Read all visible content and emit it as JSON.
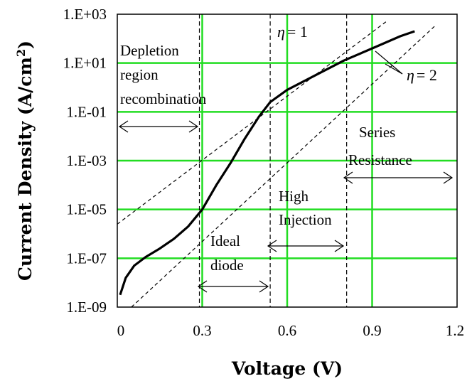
{
  "chart_data": {
    "type": "line",
    "xlabel": "Voltage (V)",
    "ylabel": "Current Density (A/cm",
    "ylabel_sup": "2",
    "ylabel_tail": ")",
    "xlim": [
      0,
      1.2
    ],
    "ylim_log10": [
      -9,
      3
    ],
    "y_scale": "log",
    "grid": true,
    "x_ticks": [
      0,
      0.3,
      0.6,
      0.9,
      1.2
    ],
    "x_tick_labels": [
      "0",
      "0.3",
      "0.6",
      "0.9",
      "1.2"
    ],
    "y_ticks": [
      -9,
      -7,
      -5,
      -3,
      -1,
      1,
      3
    ],
    "y_tick_labels": [
      "1.E-09",
      "1.E-07",
      "1.E-05",
      "1.E-03",
      "1.E-01",
      "1.E+01",
      "1.E+03"
    ],
    "series": [
      {
        "style": "solid",
        "x": [
          0.01,
          0.03,
          0.06,
          0.1,
          0.15,
          0.2,
          0.25,
          0.3,
          0.35,
          0.4,
          0.45,
          0.5,
          0.54,
          0.6,
          0.7,
          0.8,
          0.9,
          1.0,
          1.05
        ],
        "log10_y": [
          -8.5,
          -7.8,
          -7.3,
          -6.95,
          -6.6,
          -6.2,
          -5.7,
          -5.0,
          -4.0,
          -3.1,
          -2.1,
          -1.2,
          -0.6,
          -0.1,
          0.5,
          1.1,
          1.6,
          2.1,
          2.3
        ]
      },
      {
        "style": "dashed",
        "x": [
          0.0,
          0.95
        ],
        "log10_y": [
          -5.6,
          2.7
        ]
      },
      {
        "style": "dashed",
        "x": [
          0.05,
          1.12
        ],
        "log10_y": [
          -9.0,
          2.5
        ]
      }
    ],
    "regions": [
      {
        "style": "dashed-vertical",
        "x": 0.29
      },
      {
        "style": "dashed-vertical",
        "x": 0.54
      },
      {
        "style": "dashed-vertical",
        "x": 0.81
      }
    ],
    "annotations": {
      "depletion_1": "Depletion",
      "depletion_2": "region",
      "depletion_3": "recombination",
      "ideal_1": "Ideal",
      "ideal_2": "diode",
      "high_1": "High",
      "high_2": "Injection",
      "series_1": "Series",
      "series_2": "Resistance",
      "eta1_symbol": "η",
      "eta1_value": "= 1",
      "eta2_symbol": "η",
      "eta2_value": "= 2"
    }
  }
}
